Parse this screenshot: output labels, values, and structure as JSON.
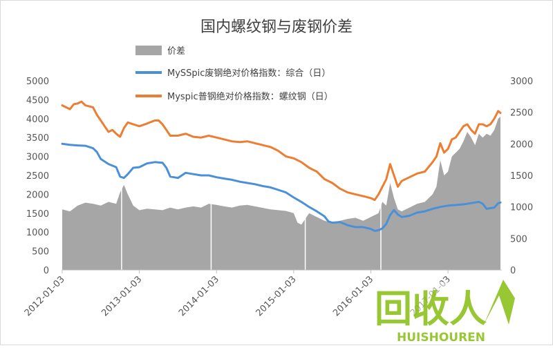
{
  "chart_data": {
    "type": "line",
    "title": "国内螺纹钢与废钢价差",
    "xlabel": "",
    "ylabel_left": "",
    "ylabel_right": "",
    "x_tick_labels": [
      "2012-01-03",
      "2013-01-03",
      "2014-01-03",
      "2015-01-03",
      "2016-01-03",
      "2017-01-03"
    ],
    "x_range": [
      2012.0,
      2017.68
    ],
    "left_axis": {
      "range": [
        0,
        5000
      ],
      "ticks": [
        0,
        500,
        1000,
        1500,
        2000,
        2500,
        3000,
        3500,
        4000,
        4500,
        5000
      ]
    },
    "right_axis": {
      "range": [
        0,
        3000
      ],
      "ticks": [
        0,
        500,
        1000,
        1500,
        2000,
        2500,
        3000
      ]
    },
    "legend_position": "top-center",
    "grid": false,
    "series": [
      {
        "name": "价差",
        "kind": "area",
        "axis": "left",
        "color": "#a6a6a6",
        "points": [
          [
            2012.0,
            1600
          ],
          [
            2012.1,
            1550
          ],
          [
            2012.2,
            1700
          ],
          [
            2012.3,
            1780
          ],
          [
            2012.4,
            1750
          ],
          [
            2012.5,
            1700
          ],
          [
            2012.6,
            1800
          ],
          [
            2012.7,
            1750
          ],
          [
            2012.75,
            2050
          ],
          [
            2012.8,
            2250
          ],
          [
            2012.85,
            2000
          ],
          [
            2012.92,
            1700
          ],
          [
            2013.0,
            1580
          ],
          [
            2013.1,
            1620
          ],
          [
            2013.2,
            1600
          ],
          [
            2013.3,
            1580
          ],
          [
            2013.4,
            1650
          ],
          [
            2013.5,
            1600
          ],
          [
            2013.6,
            1650
          ],
          [
            2013.7,
            1680
          ],
          [
            2013.8,
            1650
          ],
          [
            2013.9,
            1750
          ],
          [
            2014.0,
            1720
          ],
          [
            2014.1,
            1680
          ],
          [
            2014.2,
            1650
          ],
          [
            2014.3,
            1700
          ],
          [
            2014.4,
            1720
          ],
          [
            2014.5,
            1680
          ],
          [
            2014.6,
            1640
          ],
          [
            2014.7,
            1600
          ],
          [
            2014.8,
            1580
          ],
          [
            2014.9,
            1560
          ],
          [
            2015.0,
            1500
          ],
          [
            2015.05,
            1250
          ],
          [
            2015.1,
            1200
          ],
          [
            2015.15,
            1350
          ],
          [
            2015.2,
            1500
          ],
          [
            2015.3,
            1400
          ],
          [
            2015.4,
            1300
          ],
          [
            2015.5,
            1250
          ],
          [
            2015.6,
            1300
          ],
          [
            2015.7,
            1350
          ],
          [
            2015.8,
            1380
          ],
          [
            2015.9,
            1300
          ],
          [
            2016.0,
            1400
          ],
          [
            2016.1,
            1500
          ],
          [
            2016.15,
            1800
          ],
          [
            2016.2,
            1700
          ],
          [
            2016.25,
            2300
          ],
          [
            2016.3,
            1900
          ],
          [
            2016.35,
            1600
          ],
          [
            2016.4,
            1550
          ],
          [
            2016.5,
            1650
          ],
          [
            2016.6,
            1750
          ],
          [
            2016.7,
            1800
          ],
          [
            2016.8,
            2000
          ],
          [
            2016.85,
            2200
          ],
          [
            2016.9,
            2900
          ],
          [
            2016.95,
            2500
          ],
          [
            2017.0,
            2600
          ],
          [
            2017.05,
            3000
          ],
          [
            2017.1,
            3100
          ],
          [
            2017.15,
            3200
          ],
          [
            2017.2,
            3400
          ],
          [
            2017.25,
            3650
          ],
          [
            2017.3,
            3500
          ],
          [
            2017.35,
            3300
          ],
          [
            2017.4,
            3600
          ],
          [
            2017.45,
            3500
          ],
          [
            2017.5,
            3600
          ],
          [
            2017.55,
            3550
          ],
          [
            2017.6,
            3700
          ],
          [
            2017.65,
            4000
          ],
          [
            2017.68,
            4050
          ]
        ]
      },
      {
        "name": "MySSpic废钢绝对价格指数：综合（日）",
        "kind": "line",
        "axis": "right",
        "color": "#4a90d9",
        "points": [
          [
            2012.0,
            2000
          ],
          [
            2012.1,
            1985
          ],
          [
            2012.2,
            1975
          ],
          [
            2012.3,
            1970
          ],
          [
            2012.4,
            1930
          ],
          [
            2012.45,
            1870
          ],
          [
            2012.5,
            1760
          ],
          [
            2012.6,
            1680
          ],
          [
            2012.7,
            1630
          ],
          [
            2012.75,
            1480
          ],
          [
            2012.8,
            1460
          ],
          [
            2012.85,
            1520
          ],
          [
            2012.92,
            1620
          ],
          [
            2013.0,
            1630
          ],
          [
            2013.1,
            1690
          ],
          [
            2013.2,
            1710
          ],
          [
            2013.3,
            1700
          ],
          [
            2013.35,
            1620
          ],
          [
            2013.4,
            1480
          ],
          [
            2013.5,
            1460
          ],
          [
            2013.6,
            1540
          ],
          [
            2013.7,
            1520
          ],
          [
            2013.8,
            1500
          ],
          [
            2013.9,
            1500
          ],
          [
            2014.0,
            1470
          ],
          [
            2014.1,
            1450
          ],
          [
            2014.2,
            1430
          ],
          [
            2014.3,
            1400
          ],
          [
            2014.4,
            1380
          ],
          [
            2014.5,
            1360
          ],
          [
            2014.6,
            1330
          ],
          [
            2014.7,
            1310
          ],
          [
            2014.8,
            1270
          ],
          [
            2014.9,
            1230
          ],
          [
            2015.0,
            1150
          ],
          [
            2015.1,
            1080
          ],
          [
            2015.2,
            1000
          ],
          [
            2015.3,
            930
          ],
          [
            2015.4,
            850
          ],
          [
            2015.45,
            770
          ],
          [
            2015.5,
            750
          ],
          [
            2015.6,
            760
          ],
          [
            2015.7,
            710
          ],
          [
            2015.8,
            680
          ],
          [
            2015.9,
            680
          ],
          [
            2016.0,
            650
          ],
          [
            2016.05,
            620
          ],
          [
            2016.1,
            630
          ],
          [
            2016.15,
            660
          ],
          [
            2016.2,
            730
          ],
          [
            2016.25,
            870
          ],
          [
            2016.3,
            950
          ],
          [
            2016.35,
            880
          ],
          [
            2016.4,
            840
          ],
          [
            2016.5,
            860
          ],
          [
            2016.6,
            910
          ],
          [
            2016.7,
            930
          ],
          [
            2016.8,
            970
          ],
          [
            2016.9,
            1000
          ],
          [
            2017.0,
            1020
          ],
          [
            2017.1,
            1030
          ],
          [
            2017.2,
            1040
          ],
          [
            2017.3,
            1060
          ],
          [
            2017.4,
            1080
          ],
          [
            2017.45,
            1050
          ],
          [
            2017.5,
            970
          ],
          [
            2017.55,
            980
          ],
          [
            2017.6,
            990
          ],
          [
            2017.65,
            1060
          ],
          [
            2017.68,
            1070
          ]
        ]
      },
      {
        "name": "Myspic普钢绝对价格指数：螺纹钢（日）",
        "kind": "line",
        "axis": "left",
        "color": "#ed7d31",
        "points": [
          [
            2012.0,
            4350
          ],
          [
            2012.05,
            4300
          ],
          [
            2012.1,
            4250
          ],
          [
            2012.15,
            4380
          ],
          [
            2012.2,
            4400
          ],
          [
            2012.25,
            4450
          ],
          [
            2012.3,
            4350
          ],
          [
            2012.4,
            4300
          ],
          [
            2012.45,
            4100
          ],
          [
            2012.5,
            3950
          ],
          [
            2012.55,
            3800
          ],
          [
            2012.6,
            3650
          ],
          [
            2012.65,
            3700
          ],
          [
            2012.7,
            3600
          ],
          [
            2012.75,
            3520
          ],
          [
            2012.8,
            3750
          ],
          [
            2012.85,
            3900
          ],
          [
            2012.92,
            3850
          ],
          [
            2013.0,
            3800
          ],
          [
            2013.1,
            3870
          ],
          [
            2013.2,
            3950
          ],
          [
            2013.25,
            3950
          ],
          [
            2013.3,
            3850
          ],
          [
            2013.35,
            3700
          ],
          [
            2013.4,
            3550
          ],
          [
            2013.5,
            3550
          ],
          [
            2013.6,
            3600
          ],
          [
            2013.7,
            3520
          ],
          [
            2013.8,
            3500
          ],
          [
            2013.9,
            3550
          ],
          [
            2014.0,
            3500
          ],
          [
            2014.1,
            3450
          ],
          [
            2014.2,
            3400
          ],
          [
            2014.3,
            3380
          ],
          [
            2014.4,
            3400
          ],
          [
            2014.5,
            3350
          ],
          [
            2014.6,
            3300
          ],
          [
            2014.7,
            3250
          ],
          [
            2014.8,
            3150
          ],
          [
            2014.9,
            3000
          ],
          [
            2015.0,
            2950
          ],
          [
            2015.1,
            2850
          ],
          [
            2015.2,
            2700
          ],
          [
            2015.3,
            2600
          ],
          [
            2015.4,
            2400
          ],
          [
            2015.5,
            2300
          ],
          [
            2015.6,
            2150
          ],
          [
            2015.7,
            2050
          ],
          [
            2015.8,
            2000
          ],
          [
            2015.9,
            1950
          ],
          [
            2016.0,
            1900
          ],
          [
            2016.05,
            1850
          ],
          [
            2016.1,
            2000
          ],
          [
            2016.2,
            2400
          ],
          [
            2016.25,
            2800
          ],
          [
            2016.3,
            2500
          ],
          [
            2016.35,
            2200
          ],
          [
            2016.4,
            2350
          ],
          [
            2016.5,
            2450
          ],
          [
            2016.6,
            2550
          ],
          [
            2016.7,
            2600
          ],
          [
            2016.8,
            2850
          ],
          [
            2016.85,
            3000
          ],
          [
            2016.9,
            3350
          ],
          [
            2016.95,
            3100
          ],
          [
            2017.0,
            3200
          ],
          [
            2017.05,
            3450
          ],
          [
            2017.1,
            3500
          ],
          [
            2017.2,
            3800
          ],
          [
            2017.25,
            3850
          ],
          [
            2017.3,
            3700
          ],
          [
            2017.35,
            3600
          ],
          [
            2017.4,
            3850
          ],
          [
            2017.45,
            3850
          ],
          [
            2017.5,
            3800
          ],
          [
            2017.55,
            3850
          ],
          [
            2017.6,
            4000
          ],
          [
            2017.65,
            4200
          ],
          [
            2017.68,
            4150
          ]
        ]
      }
    ],
    "vertical_gaps_in_area": [
      2012.77,
      2013.93,
      2015.15,
      2016.13
    ]
  },
  "watermark": {
    "main_text": "回收人",
    "sub_text": "HUISHOUREN",
    "color": "#8dc21f"
  }
}
